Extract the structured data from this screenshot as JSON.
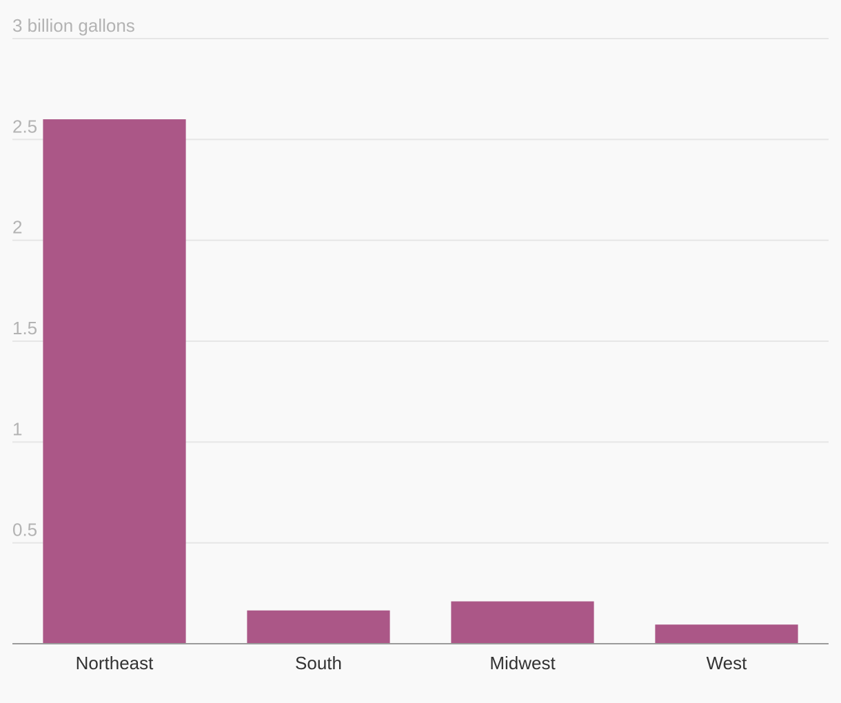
{
  "chart_data": {
    "type": "bar",
    "categories": [
      "Northeast",
      "South",
      "Midwest",
      "West"
    ],
    "values": [
      2.6,
      0.165,
      0.21,
      0.095
    ],
    "ylim": [
      0,
      3
    ],
    "yticks": [
      0,
      0.5,
      1,
      1.5,
      2,
      2.5,
      3
    ],
    "ytick_labels": [
      "",
      "0.5",
      "1",
      "1.5",
      "2",
      "2.5",
      "3 billion gallons"
    ],
    "bar_color": "#ab5787",
    "grid": true
  }
}
